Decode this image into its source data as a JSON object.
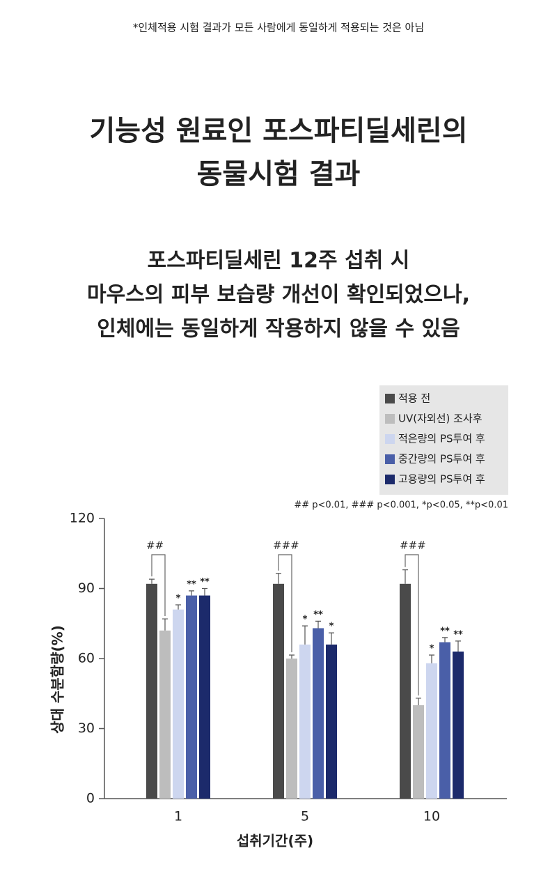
{
  "notice": "*인체적용 시험 결과가 모든 사람에게 동일하게 적용되는 것은 아님",
  "heading": [
    "기능성 원료인 포스파티딜세린의",
    "동물시험 결과"
  ],
  "subheading": [
    "포스파티딜세린 12주 섭취 시",
    "마우스의 피부 보습량 개선이 확인되었으나,",
    "인체에는 동일하게 작용하지 않을 수 있음"
  ],
  "chart_data": {
    "type": "bar",
    "x_label": "섭취기간(주)",
    "y_label": "상대 수분함량(%)",
    "note": "## p<0.01, ### p<0.001, *p<0.05, **p<0.01",
    "categories": [
      "1",
      "5",
      "10"
    ],
    "series": [
      {
        "name": "적용 전",
        "color": "#4a4a4a",
        "values": [
          92,
          92,
          92
        ],
        "errors": [
          2,
          4.5,
          6
        ],
        "significance": [
          null,
          null,
          null
        ]
      },
      {
        "name": "UV(자외선) 조사후",
        "color": "#bdbdbd",
        "values": [
          72,
          60,
          40
        ],
        "errors": [
          5,
          1.5,
          3
        ],
        "significance": [
          null,
          null,
          null
        ]
      },
      {
        "name": "적은량의 PS투여 후",
        "color": "#cdd6ef",
        "values": [
          81,
          66,
          58
        ],
        "errors": [
          2,
          8,
          3.5
        ],
        "significance": [
          "*",
          "*",
          "*"
        ]
      },
      {
        "name": "중간량의 PS투여 후",
        "color": "#4a5fa8",
        "values": [
          87,
          73,
          67
        ],
        "errors": [
          2,
          3,
          2
        ],
        "significance": [
          "**",
          "**",
          "**"
        ]
      },
      {
        "name": "고용량의 PS투여 후",
        "color": "#1c2a6b",
        "values": [
          87,
          66,
          63
        ],
        "errors": [
          3,
          5,
          4.5
        ],
        "significance": [
          "**",
          "*",
          "**"
        ]
      }
    ],
    "bracket_labels": [
      "##",
      "###",
      "###"
    ],
    "ylim": [
      0,
      120
    ],
    "yticks": [
      0,
      30,
      60,
      90,
      120
    ],
    "legend": "top-right"
  }
}
